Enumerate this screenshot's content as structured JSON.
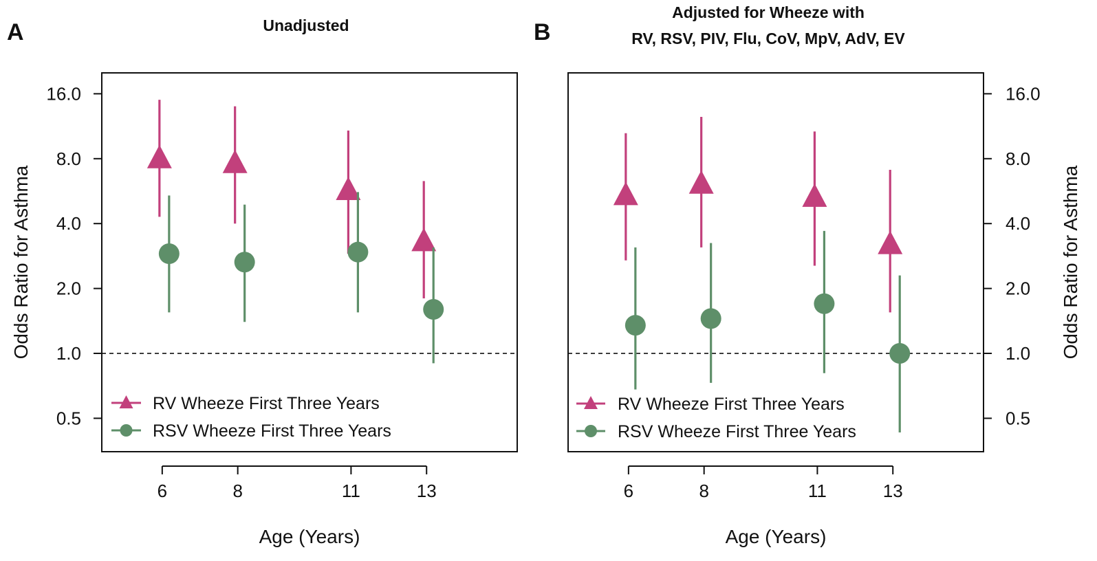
{
  "colors": {
    "rv": "#c2407c",
    "rsv": "#5e8f69",
    "axis": "#111111",
    "reference_line": "#111111"
  },
  "chart_data": [
    {
      "panel_label": "A",
      "type": "scatter",
      "title": "Unadjusted",
      "title_lines": [
        "Unadjusted"
      ],
      "xlabel": "Age (Years)",
      "ylabel": "Odds Ratio for Asthma",
      "y_axis_side": "left",
      "y_scale": "log2",
      "xlim": [
        4.4,
        15.4
      ],
      "ylim": [
        0.35,
        20.0
      ],
      "x_ticks": [
        6,
        8,
        11,
        13
      ],
      "y_ticks": [
        0.5,
        1.0,
        2.0,
        4.0,
        8.0,
        16.0
      ],
      "y_tick_labels": [
        "0.5",
        "1.0",
        "2.0",
        "4.0",
        "8.0",
        "16.0"
      ],
      "reference_line_y": 1.0,
      "legend_position": "bottom-left",
      "series": [
        {
          "name": "RV Wheeze First Three Years",
          "marker": "triangle",
          "color_key": "rv",
          "points": [
            {
              "x": 6,
              "or": 8.0,
              "lower": 4.3,
              "upper": 15.0
            },
            {
              "x": 8,
              "or": 7.6,
              "lower": 4.0,
              "upper": 14.0
            },
            {
              "x": 11,
              "or": 5.7,
              "lower": 2.9,
              "upper": 10.8
            },
            {
              "x": 13,
              "or": 3.3,
              "lower": 1.8,
              "upper": 6.3
            }
          ]
        },
        {
          "name": "RSV Wheeze First Three Years",
          "marker": "circle",
          "color_key": "rsv",
          "points": [
            {
              "x": 6,
              "or": 2.9,
              "lower": 1.55,
              "upper": 5.4
            },
            {
              "x": 8,
              "or": 2.65,
              "lower": 1.4,
              "upper": 4.9
            },
            {
              "x": 11,
              "or": 2.95,
              "lower": 1.55,
              "upper": 5.6
            },
            {
              "x": 13,
              "or": 1.6,
              "lower": 0.9,
              "upper": 3.1
            }
          ]
        }
      ]
    },
    {
      "panel_label": "B",
      "type": "scatter",
      "title": "Adjusted for Wheeze with RV, RSV, PIV, Flu, CoV, MpV, AdV, EV",
      "title_lines": [
        "Adjusted for Wheeze with",
        "RV, RSV, PIV, Flu, CoV, MpV, AdV, EV"
      ],
      "xlabel": "Age (Years)",
      "ylabel": "Odds Ratio for Asthma",
      "y_axis_side": "right",
      "y_scale": "log2",
      "xlim": [
        4.4,
        15.4
      ],
      "ylim": [
        0.35,
        20.0
      ],
      "x_ticks": [
        6,
        8,
        11,
        13
      ],
      "y_ticks": [
        0.5,
        1.0,
        2.0,
        4.0,
        8.0,
        16.0
      ],
      "y_tick_labels": [
        "0.5",
        "1.0",
        "2.0",
        "4.0",
        "8.0",
        "16.0"
      ],
      "reference_line_y": 1.0,
      "legend_position": "bottom-left",
      "series": [
        {
          "name": "RV Wheeze First Three Years",
          "marker": "triangle",
          "color_key": "rv",
          "points": [
            {
              "x": 6,
              "or": 5.4,
              "lower": 2.7,
              "upper": 10.5
            },
            {
              "x": 8,
              "or": 6.1,
              "lower": 3.1,
              "upper": 12.5
            },
            {
              "x": 11,
              "or": 5.3,
              "lower": 2.55,
              "upper": 10.7
            },
            {
              "x": 13,
              "or": 3.2,
              "lower": 1.55,
              "upper": 7.1
            }
          ]
        },
        {
          "name": "RSV Wheeze First Three Years",
          "marker": "circle",
          "color_key": "rsv",
          "points": [
            {
              "x": 6,
              "or": 1.35,
              "lower": 0.68,
              "upper": 3.1
            },
            {
              "x": 8,
              "or": 1.45,
              "lower": 0.73,
              "upper": 3.25
            },
            {
              "x": 11,
              "or": 1.7,
              "lower": 0.81,
              "upper": 3.7
            },
            {
              "x": 13,
              "or": 1.0,
              "lower": 0.43,
              "upper": 2.3
            }
          ]
        }
      ]
    }
  ]
}
